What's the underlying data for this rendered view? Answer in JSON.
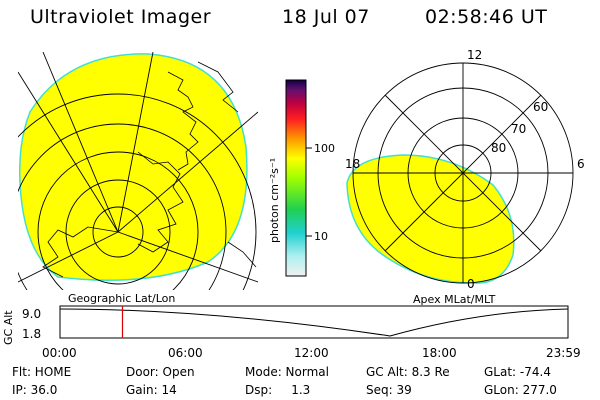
{
  "header": {
    "title": "Ultraviolet Imager",
    "date": "18 Jul 07",
    "time": "02:58:46 UT"
  },
  "left_map": {
    "caption": "Geographic Lat/Lon"
  },
  "right_map": {
    "caption": "Apex MLat/MLT",
    "mlt_labels": {
      "top": "12",
      "left": "18",
      "right": "6",
      "bottom": "0"
    },
    "lat_labels": [
      "60",
      "70",
      "80"
    ]
  },
  "colorbar": {
    "unit_label": "photon cm⁻²s⁻¹",
    "tick_100": "100",
    "tick_10": "10"
  },
  "timeline": {
    "ylabel": "GC Alt",
    "ytick_top": "9.0",
    "ytick_bottom": "1.8",
    "xticks": [
      "00:00",
      "06:00",
      "12:00",
      "18:00",
      "23:59"
    ],
    "current_fraction": 0.123
  },
  "status": {
    "flt": "Flt: HOME",
    "ip": "IP: 36.0",
    "door": "Door: Open",
    "gain": "Gain: 14",
    "mode": "Mode: Normal",
    "dsp": "Dsp:     1.3",
    "gc_alt": "GC Alt: 8.3 Re",
    "seq": "Seq: 39",
    "glat": "GLat: -74.4",
    "glon": "GLon: 277.0"
  },
  "colors": {
    "aurora_fill": "#ffff00",
    "aurora_edge": "#40e0d0",
    "marker": "#dd0000"
  }
}
